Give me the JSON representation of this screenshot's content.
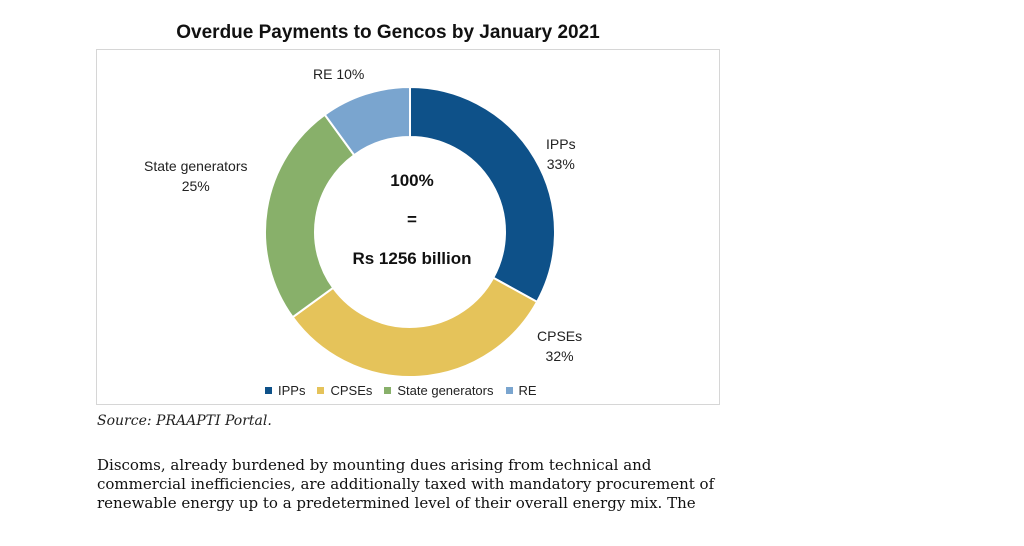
{
  "chart_data": {
    "type": "pie",
    "title": "Overdue Payments to Gencos by January 2021",
    "categories": [
      "IPPs",
      "CPSEs",
      "State generators",
      "RE"
    ],
    "values": [
      33,
      32,
      25,
      10
    ],
    "value_labels": [
      "33%",
      "32%",
      "25%",
      "10%"
    ],
    "colors": [
      "#0e5189",
      "#e5c35a",
      "#88b06a",
      "#7aa5cf"
    ],
    "center_text": [
      "100%",
      "=",
      "Rs 1256 billion"
    ],
    "legend": [
      "IPPs",
      "CPSEs",
      "State generators",
      "RE"
    ],
    "legend_position": "bottom",
    "donut": true
  },
  "source": "Source: PRAAPTI Portal.",
  "paragraph_lines": [
    "Discoms, already burdened by mounting dues arising from technical and",
    "commercial inefficiencies, are additionally taxed with mandatory procurement of",
    "renewable energy up to a predetermined level of their overall energy mix. The"
  ]
}
